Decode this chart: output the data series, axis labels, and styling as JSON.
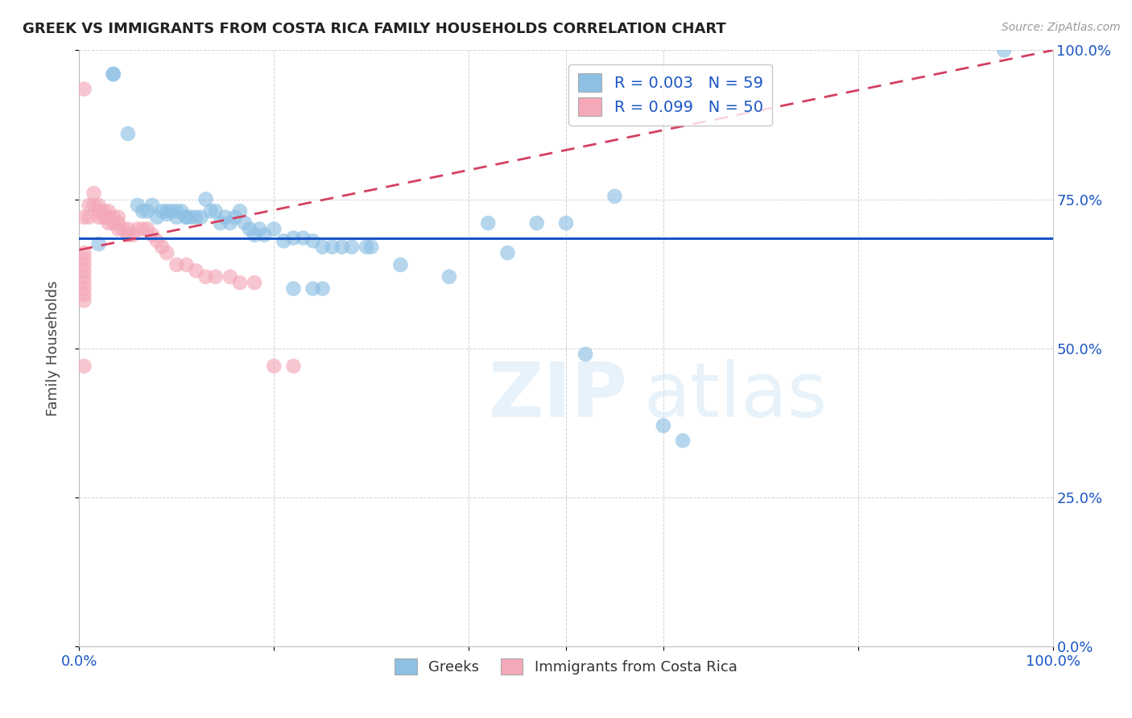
{
  "title": "GREEK VS IMMIGRANTS FROM COSTA RICA FAMILY HOUSEHOLDS CORRELATION CHART",
  "source": "Source: ZipAtlas.com",
  "ylabel": "Family Households",
  "blue_color": "#8ec0e4",
  "pink_color": "#f4a8b8",
  "blue_line_color": "#1a56c4",
  "pink_line_color": "#d44060",
  "blue_scatter_x": [
    0.02,
    0.035,
    0.035,
    0.05,
    0.06,
    0.065,
    0.07,
    0.075,
    0.08,
    0.085,
    0.09,
    0.09,
    0.095,
    0.1,
    0.1,
    0.105,
    0.11,
    0.11,
    0.115,
    0.12,
    0.125,
    0.13,
    0.135,
    0.14,
    0.145,
    0.15,
    0.155,
    0.16,
    0.165,
    0.17,
    0.175,
    0.18,
    0.185,
    0.19,
    0.2,
    0.21,
    0.22,
    0.23,
    0.24,
    0.25,
    0.26,
    0.27,
    0.28,
    0.295,
    0.3,
    0.33,
    0.38,
    0.42,
    0.44,
    0.47,
    0.5,
    0.52,
    0.55,
    0.6,
    0.62,
    0.95,
    0.22,
    0.24,
    0.25
  ],
  "blue_scatter_y": [
    0.675,
    0.96,
    0.96,
    0.86,
    0.74,
    0.73,
    0.73,
    0.74,
    0.72,
    0.73,
    0.73,
    0.725,
    0.73,
    0.73,
    0.72,
    0.73,
    0.72,
    0.72,
    0.72,
    0.72,
    0.72,
    0.75,
    0.73,
    0.73,
    0.71,
    0.72,
    0.71,
    0.72,
    0.73,
    0.71,
    0.7,
    0.69,
    0.7,
    0.69,
    0.7,
    0.68,
    0.685,
    0.685,
    0.68,
    0.67,
    0.67,
    0.67,
    0.67,
    0.67,
    0.67,
    0.64,
    0.62,
    0.71,
    0.66,
    0.71,
    0.71,
    0.49,
    0.755,
    0.37,
    0.345,
    1.0,
    0.6,
    0.6,
    0.6
  ],
  "pink_scatter_x": [
    0.005,
    0.005,
    0.01,
    0.01,
    0.015,
    0.015,
    0.02,
    0.02,
    0.02,
    0.025,
    0.025,
    0.03,
    0.03,
    0.03,
    0.035,
    0.035,
    0.04,
    0.04,
    0.04,
    0.045,
    0.05,
    0.05,
    0.055,
    0.06,
    0.065,
    0.07,
    0.075,
    0.08,
    0.085,
    0.09,
    0.1,
    0.11,
    0.12,
    0.13,
    0.14,
    0.155,
    0.165,
    0.18,
    0.2,
    0.22,
    0.005,
    0.005,
    0.005,
    0.005,
    0.005,
    0.005,
    0.005,
    0.005,
    0.005,
    0.005
  ],
  "pink_scatter_y": [
    0.935,
    0.72,
    0.74,
    0.72,
    0.76,
    0.74,
    0.74,
    0.73,
    0.72,
    0.73,
    0.72,
    0.73,
    0.72,
    0.71,
    0.72,
    0.71,
    0.72,
    0.71,
    0.7,
    0.7,
    0.7,
    0.69,
    0.69,
    0.7,
    0.7,
    0.7,
    0.69,
    0.68,
    0.67,
    0.66,
    0.64,
    0.64,
    0.63,
    0.62,
    0.62,
    0.62,
    0.61,
    0.61,
    0.47,
    0.47,
    0.66,
    0.65,
    0.64,
    0.63,
    0.62,
    0.61,
    0.6,
    0.59,
    0.58,
    0.47
  ],
  "blue_line_x": [
    0.0,
    1.0
  ],
  "blue_line_y": [
    0.685,
    0.685
  ],
  "pink_line_x": [
    0.0,
    1.0
  ],
  "pink_line_y": [
    0.665,
    1.0
  ],
  "xlim": [
    0.0,
    1.0
  ],
  "ylim": [
    0.0,
    1.0
  ],
  "xtick_positions": [
    0.0,
    0.2,
    0.4,
    0.5,
    0.6,
    0.8,
    1.0
  ],
  "xtick_labels_show": [
    "0.0%",
    "",
    "",
    "",
    "",
    "",
    "100.0%"
  ],
  "ytick_positions": [
    0.0,
    0.25,
    0.5,
    0.75,
    1.0
  ],
  "ytick_labels": [
    "",
    "25.0%",
    "50.0%",
    "75.0%",
    "100.0%"
  ],
  "right_ytick_labels": [
    "0.0%",
    "25.0%",
    "50.0%",
    "75.0%",
    "100.0%"
  ]
}
